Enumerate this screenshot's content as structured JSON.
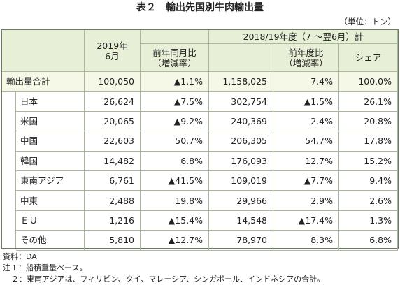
{
  "header": {
    "title": "表２　輸出先国別牛肉輸出量",
    "unit": "（単位：トン）"
  },
  "table": {
    "group_headers": [
      "2019年\n6月",
      "2018/19年度（7 ～翌6月）計"
    ],
    "sub_headers": [
      "前年同月比\n（増減率）",
      "前年度比\n（増減率）",
      "シェア"
    ],
    "rows": [
      [
        "輸出量合計",
        "100,050",
        "▲1.1%",
        "1,158,025",
        "7.4%",
        "100.0%"
      ],
      [
        "日本",
        "26,624",
        "▲7.5%",
        "302,754",
        "▲1.5%",
        "26.1%"
      ],
      [
        "米国",
        "20,065",
        "▲9.2%",
        "240,369",
        "2.4%",
        "20.8%"
      ],
      [
        "中国",
        "22,603",
        "50.7%",
        "206,305",
        "54.7%",
        "17.8%"
      ],
      [
        "韓国",
        "14,482",
        "6.8%",
        "176,093",
        "12.7%",
        "15.2%"
      ],
      [
        "東南アジア",
        "6,761",
        "▲41.5%",
        "109,019",
        "▲7.7%",
        "9.4%"
      ],
      [
        "中東",
        "2,488",
        "19.8%",
        "29,966",
        "2.9%",
        "2.6%"
      ],
      [
        "ＥＵ",
        "1,216",
        "▲15.4%",
        "14,548",
        "▲17.4%",
        "1.3%"
      ],
      [
        "その他",
        "5,810",
        "▲12.7%",
        "78,970",
        "8.3%",
        "6.8%"
      ]
    ]
  },
  "notes": [
    "資料：DA",
    "注１：船積重量ベース。",
    "２：東南アジアは、フィリピン、タイ、マレーシア、シンガポール、インドネシアの合計。"
  ]
}
